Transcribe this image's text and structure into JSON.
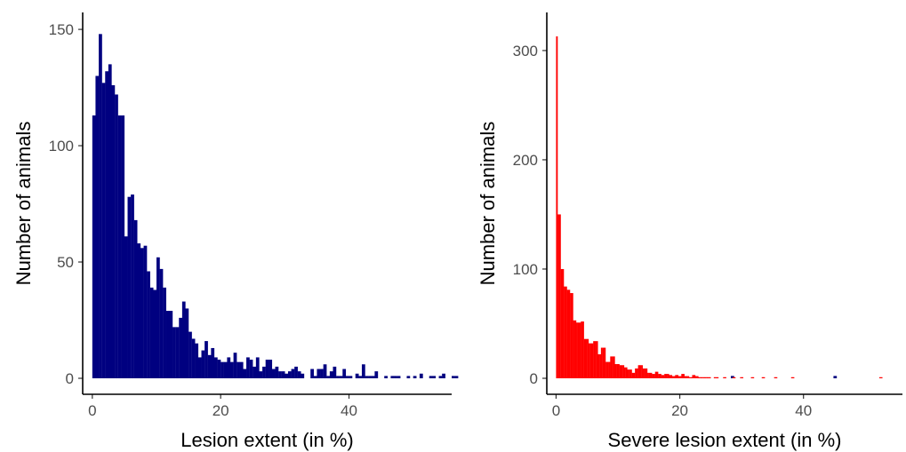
{
  "chart_data": [
    {
      "type": "bar",
      "subtype": "histogram",
      "title": "",
      "xlabel": "Lesion extent (in %)",
      "ylabel": "Number of animals",
      "xlim": [
        -1.5,
        56
      ],
      "ylim": [
        0,
        155
      ],
      "bin_width": 0.5,
      "bin_start": 0,
      "xticks": [
        0,
        20,
        40
      ],
      "yticks": [
        0,
        50,
        100,
        150
      ],
      "color": "#000080",
      "values": [
        113,
        130,
        148,
        127,
        132,
        135,
        126,
        122,
        113,
        113,
        61,
        78,
        79,
        68,
        58,
        56,
        57,
        46,
        39,
        38,
        52,
        47,
        39,
        29,
        29,
        22,
        22,
        26,
        33,
        30,
        20,
        17,
        15,
        9,
        12,
        16,
        10,
        13,
        9,
        8,
        7,
        7,
        9,
        7,
        11,
        7,
        7,
        4,
        9,
        8,
        5,
        9,
        3,
        5,
        8,
        8,
        4,
        5,
        3,
        3,
        2,
        3,
        4,
        5,
        3,
        2,
        0,
        0,
        4,
        1,
        4,
        4,
        6,
        1,
        3,
        5,
        1,
        1,
        4,
        1,
        1,
        0,
        2,
        1,
        6,
        1,
        1,
        1,
        3,
        0,
        0,
        1,
        0,
        1,
        1,
        1,
        0,
        0,
        1,
        0,
        1,
        0,
        2,
        0,
        0,
        1,
        1,
        0,
        1,
        2,
        0,
        0,
        1,
        1,
        0,
        0,
        0,
        0,
        0,
        0,
        0,
        0,
        0,
        0,
        0,
        0,
        0,
        0,
        0,
        0,
        0,
        0,
        0,
        0,
        0,
        0,
        0,
        0,
        0,
        0,
        0,
        0,
        0,
        0,
        0,
        0,
        0,
        0,
        0,
        0,
        0,
        0,
        0,
        0,
        0,
        0,
        0,
        0,
        0,
        0,
        0,
        0,
        0,
        0,
        0,
        0,
        0,
        0,
        0,
        0,
        0,
        0,
        0,
        0,
        0,
        0,
        0,
        0,
        0,
        0,
        0,
        0,
        0,
        0,
        0,
        0,
        0,
        0,
        0,
        0,
        0,
        0,
        0,
        0,
        0,
        0,
        0,
        0,
        0,
        1,
        0,
        0,
        0,
        0,
        0,
        0,
        0,
        0,
        0,
        0,
        0,
        0,
        0,
        0,
        0,
        0,
        0,
        0,
        0,
        0,
        0,
        0,
        0,
        0,
        0,
        0,
        0,
        0,
        0,
        0,
        0,
        1,
        0,
        0,
        0,
        0,
        0,
        0,
        0,
        0
      ]
    },
    {
      "type": "bar",
      "subtype": "histogram",
      "title": "",
      "xlabel": "Severe lesion extent (in %)",
      "ylabel": "Number of animals",
      "xlim": [
        -1.5,
        56
      ],
      "ylim": [
        0,
        330
      ],
      "bin_width": 0.25,
      "bin_start": 0,
      "xticks": [
        0,
        20,
        40
      ],
      "yticks": [
        0,
        100,
        200,
        300
      ],
      "color": "#ff0000",
      "values": [
        313,
        150,
        150,
        100,
        100,
        84,
        84,
        81,
        81,
        78,
        78,
        53,
        53,
        51,
        51,
        51,
        52,
        52,
        36,
        36,
        36,
        32,
        32,
        32,
        34,
        34,
        34,
        22,
        22,
        28,
        28,
        28,
        15,
        15,
        15,
        20,
        20,
        20,
        13,
        13,
        13,
        12,
        12,
        12,
        10,
        10,
        8,
        8,
        8,
        5,
        5,
        9,
        9,
        12,
        12,
        12,
        9,
        9,
        9,
        5,
        5,
        5,
        4,
        4,
        6,
        6,
        4,
        4,
        3,
        3,
        4,
        4,
        4,
        3,
        3,
        2,
        2,
        3,
        3,
        2,
        2,
        4,
        4,
        2,
        2,
        2,
        1,
        1,
        3,
        3,
        2,
        2,
        1,
        1,
        1,
        1,
        1,
        1,
        1,
        1,
        0,
        0,
        1,
        1,
        1,
        0,
        0,
        0,
        1,
        1,
        0,
        0,
        0,
        0,
        1,
        1,
        0,
        0,
        0,
        1,
        1,
        0,
        0,
        0,
        0,
        0,
        1,
        1,
        0,
        0,
        0,
        0,
        0,
        1,
        1,
        0,
        0,
        0,
        0,
        0,
        0,
        1,
        1,
        0,
        0,
        0,
        0,
        0,
        0,
        0,
        0,
        0,
        1,
        1,
        0,
        0,
        0,
        0,
        0,
        0,
        0,
        0,
        0,
        0,
        0,
        0,
        0,
        0,
        0,
        0,
        0,
        0,
        0,
        0,
        0,
        0,
        0,
        0,
        0,
        0,
        0,
        0,
        0,
        0,
        0,
        0,
        0,
        0,
        0,
        0,
        0,
        0,
        0,
        0,
        0,
        0,
        0,
        0,
        0,
        0,
        0,
        0,
        0,
        0,
        0,
        0,
        0,
        0,
        0,
        1,
        1
      ]
    }
  ]
}
